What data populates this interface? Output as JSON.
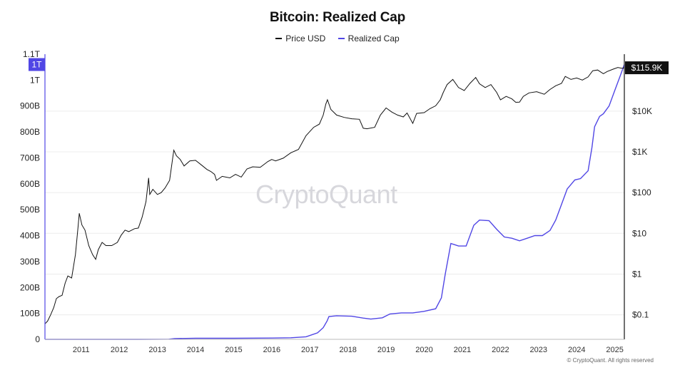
{
  "chart_data": {
    "type": "line",
    "title": "Bitcoin: Realized Cap",
    "legend_position": "top-center",
    "grid": true,
    "x_ticks": [
      "2011",
      "2012",
      "2013",
      "2014",
      "2015",
      "2016",
      "2017",
      "2018",
      "2019",
      "2020",
      "2021",
      "2022",
      "2023",
      "2024",
      "2025"
    ],
    "x_range": [
      2010.55,
      2025.75
    ],
    "left_axis": {
      "scale": "linear",
      "range": [
        0,
        1100
      ],
      "unit": "B",
      "ticks": [
        {
          "v": 0,
          "label": "0"
        },
        {
          "v": 100,
          "label": "100B"
        },
        {
          "v": 200,
          "label": "200B"
        },
        {
          "v": 300,
          "label": "300B"
        },
        {
          "v": 400,
          "label": "400B"
        },
        {
          "v": 500,
          "label": "500B"
        },
        {
          "v": 600,
          "label": "600B"
        },
        {
          "v": 700,
          "label": "700B"
        },
        {
          "v": 800,
          "label": "800B"
        },
        {
          "v": 900,
          "label": "900B"
        },
        {
          "v": 1000,
          "label": "1T"
        },
        {
          "v": 1100,
          "label": "1.1T"
        }
      ],
      "current_label": "1T",
      "current_value": 1060
    },
    "right_axis": {
      "scale": "log",
      "range": [
        0.025,
        250000
      ],
      "ticks": [
        {
          "v": 0.1,
          "label": "$0.1"
        },
        {
          "v": 1,
          "label": "$1"
        },
        {
          "v": 10,
          "label": "$10"
        },
        {
          "v": 100,
          "label": "$100"
        },
        {
          "v": 1000,
          "label": "$1K"
        },
        {
          "v": 10000,
          "label": "$10K"
        }
      ],
      "current_label": "$115.9K",
      "current_value": 115900
    },
    "series": [
      {
        "name": "Price USD",
        "color": "#111111",
        "axis": "right",
        "points": [
          [
            2010.55,
            0.06
          ],
          [
            2010.62,
            0.07
          ],
          [
            2010.7,
            0.1
          ],
          [
            2010.78,
            0.15
          ],
          [
            2010.85,
            0.25
          ],
          [
            2010.92,
            0.28
          ],
          [
            2011.0,
            0.3
          ],
          [
            2011.08,
            0.6
          ],
          [
            2011.15,
            0.9
          ],
          [
            2011.25,
            0.8
          ],
          [
            2011.35,
            3.0
          ],
          [
            2011.42,
            15
          ],
          [
            2011.45,
            31
          ],
          [
            2011.52,
            16
          ],
          [
            2011.6,
            12
          ],
          [
            2011.7,
            5
          ],
          [
            2011.8,
            3.0
          ],
          [
            2011.88,
            2.3
          ],
          [
            2011.95,
            4.0
          ],
          [
            2012.05,
            6
          ],
          [
            2012.15,
            5
          ],
          [
            2012.3,
            5
          ],
          [
            2012.45,
            6
          ],
          [
            2012.55,
            9
          ],
          [
            2012.65,
            12
          ],
          [
            2012.75,
            11
          ],
          [
            2012.9,
            13
          ],
          [
            2013.0,
            13.5
          ],
          [
            2013.1,
            25
          ],
          [
            2013.2,
            60
          ],
          [
            2013.27,
            230
          ],
          [
            2013.3,
            90
          ],
          [
            2013.38,
            120
          ],
          [
            2013.5,
            90
          ],
          [
            2013.6,
            100
          ],
          [
            2013.7,
            130
          ],
          [
            2013.82,
            200
          ],
          [
            2013.9,
            700
          ],
          [
            2013.93,
            1100
          ],
          [
            2014.0,
            800
          ],
          [
            2014.1,
            650
          ],
          [
            2014.2,
            450
          ],
          [
            2014.35,
            600
          ],
          [
            2014.5,
            620
          ],
          [
            2014.65,
            480
          ],
          [
            2014.8,
            370
          ],
          [
            2014.9,
            330
          ],
          [
            2015.0,
            280
          ],
          [
            2015.05,
            200
          ],
          [
            2015.2,
            250
          ],
          [
            2015.4,
            230
          ],
          [
            2015.55,
            280
          ],
          [
            2015.7,
            240
          ],
          [
            2015.85,
            380
          ],
          [
            2016.0,
            430
          ],
          [
            2016.2,
            420
          ],
          [
            2016.4,
            580
          ],
          [
            2016.5,
            650
          ],
          [
            2016.6,
            600
          ],
          [
            2016.8,
            700
          ],
          [
            2017.0,
            950
          ],
          [
            2017.2,
            1150
          ],
          [
            2017.4,
            2500
          ],
          [
            2017.6,
            4000
          ],
          [
            2017.75,
            4800
          ],
          [
            2017.85,
            8000
          ],
          [
            2017.92,
            15000
          ],
          [
            2017.96,
            19000
          ],
          [
            2018.05,
            11000
          ],
          [
            2018.2,
            8000
          ],
          [
            2018.4,
            7000
          ],
          [
            2018.6,
            6500
          ],
          [
            2018.8,
            6300
          ],
          [
            2018.9,
            3800
          ],
          [
            2019.0,
            3700
          ],
          [
            2019.2,
            4000
          ],
          [
            2019.35,
            8000
          ],
          [
            2019.5,
            12000
          ],
          [
            2019.65,
            9500
          ],
          [
            2019.8,
            8000
          ],
          [
            2019.95,
            7200
          ],
          [
            2020.05,
            9000
          ],
          [
            2020.2,
            5000
          ],
          [
            2020.3,
            8800
          ],
          [
            2020.5,
            9200
          ],
          [
            2020.65,
            11500
          ],
          [
            2020.8,
            13500
          ],
          [
            2020.92,
            19000
          ],
          [
            2021.0,
            29000
          ],
          [
            2021.1,
            45000
          ],
          [
            2021.25,
            60000
          ],
          [
            2021.4,
            38000
          ],
          [
            2021.55,
            32000
          ],
          [
            2021.7,
            48000
          ],
          [
            2021.85,
            67000
          ],
          [
            2021.95,
            47000
          ],
          [
            2022.1,
            38000
          ],
          [
            2022.25,
            45000
          ],
          [
            2022.4,
            29000
          ],
          [
            2022.5,
            19000
          ],
          [
            2022.65,
            23000
          ],
          [
            2022.8,
            20000
          ],
          [
            2022.9,
            16500
          ],
          [
            2023.0,
            16600
          ],
          [
            2023.1,
            23000
          ],
          [
            2023.25,
            28000
          ],
          [
            2023.45,
            30000
          ],
          [
            2023.65,
            26000
          ],
          [
            2023.8,
            34000
          ],
          [
            2023.95,
            42000
          ],
          [
            2024.1,
            48000
          ],
          [
            2024.2,
            71000
          ],
          [
            2024.35,
            60000
          ],
          [
            2024.5,
            65000
          ],
          [
            2024.65,
            58000
          ],
          [
            2024.8,
            69000
          ],
          [
            2024.92,
            98000
          ],
          [
            2025.05,
            102000
          ],
          [
            2025.2,
            83000
          ],
          [
            2025.3,
            94000
          ],
          [
            2025.45,
            107000
          ],
          [
            2025.58,
            118000
          ],
          [
            2025.68,
            113000
          ],
          [
            2025.75,
            115900
          ]
        ]
      },
      {
        "name": "Realized Cap",
        "color": "#5046e5",
        "axis": "left",
        "points": [
          [
            2010.55,
            0
          ],
          [
            2013.0,
            0.1
          ],
          [
            2013.8,
            0.5
          ],
          [
            2013.95,
            3
          ],
          [
            2014.5,
            4
          ],
          [
            2015.5,
            4
          ],
          [
            2016.5,
            5
          ],
          [
            2017.0,
            6
          ],
          [
            2017.4,
            10
          ],
          [
            2017.7,
            25
          ],
          [
            2017.85,
            45
          ],
          [
            2017.95,
            70
          ],
          [
            2018.0,
            88
          ],
          [
            2018.2,
            91
          ],
          [
            2018.6,
            89
          ],
          [
            2018.9,
            82
          ],
          [
            2019.1,
            78
          ],
          [
            2019.4,
            83
          ],
          [
            2019.6,
            98
          ],
          [
            2019.9,
            102
          ],
          [
            2020.2,
            102
          ],
          [
            2020.5,
            108
          ],
          [
            2020.8,
            118
          ],
          [
            2020.95,
            160
          ],
          [
            2021.05,
            250
          ],
          [
            2021.2,
            370
          ],
          [
            2021.4,
            360
          ],
          [
            2021.6,
            360
          ],
          [
            2021.8,
            440
          ],
          [
            2021.95,
            460
          ],
          [
            2022.2,
            458
          ],
          [
            2022.4,
            425
          ],
          [
            2022.6,
            395
          ],
          [
            2022.8,
            390
          ],
          [
            2023.0,
            380
          ],
          [
            2023.2,
            390
          ],
          [
            2023.4,
            400
          ],
          [
            2023.6,
            400
          ],
          [
            2023.8,
            420
          ],
          [
            2023.95,
            460
          ],
          [
            2024.1,
            520
          ],
          [
            2024.25,
            580
          ],
          [
            2024.45,
            615
          ],
          [
            2024.6,
            620
          ],
          [
            2024.8,
            650
          ],
          [
            2024.9,
            740
          ],
          [
            2024.97,
            820
          ],
          [
            2025.1,
            860
          ],
          [
            2025.2,
            870
          ],
          [
            2025.35,
            900
          ],
          [
            2025.5,
            960
          ],
          [
            2025.65,
            1020
          ],
          [
            2025.75,
            1060
          ]
        ]
      }
    ]
  },
  "watermark": "CryptoQuant",
  "credit": "© CryptoQuant. All rights reserved"
}
